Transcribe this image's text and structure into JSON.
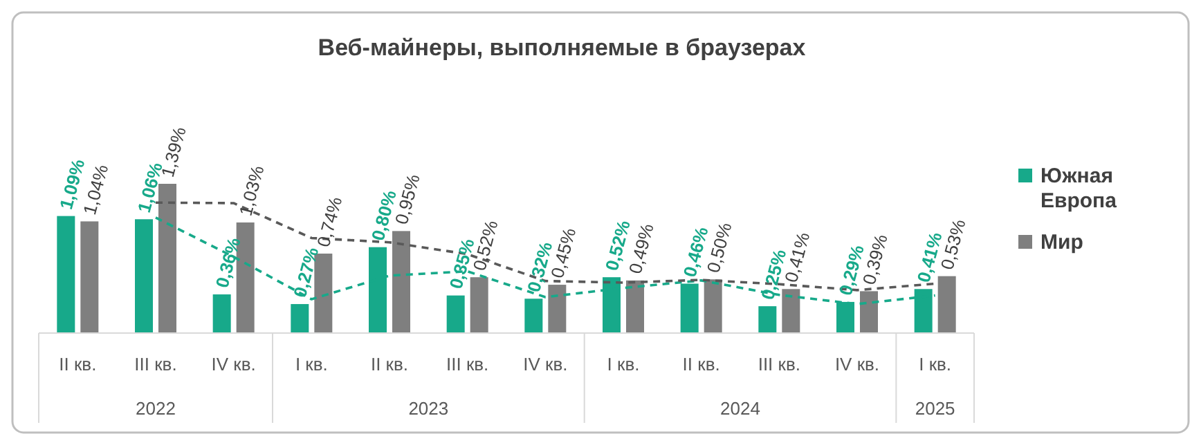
{
  "chart_data": {
    "type": "bar",
    "title": "Веб-майнеры, выполняемые в браузерах",
    "categories": [
      "II кв.",
      "III кв.",
      "IV кв.",
      "I кв.",
      "II кв.",
      "III кв.",
      "IV кв.",
      "I кв.",
      "II кв.",
      "III кв.",
      "IV кв.",
      "I кв."
    ],
    "series": [
      {
        "name": "Южная Европа",
        "color": "#17a98a",
        "values": [
          1.09,
          1.06,
          0.36,
          0.27,
          0.8,
          0.35,
          0.32,
          0.52,
          0.46,
          0.25,
          0.29,
          0.41
        ],
        "value_labels": [
          "1,09%",
          "1,06%",
          "0,36%",
          "0,27%",
          "0,80%",
          "0,35%",
          "0,32%",
          "0,52%",
          "0,46%",
          "0,25%",
          "0,29%",
          "0,41%"
        ]
      },
      {
        "name": "Мир",
        "color": "#7f7f7f",
        "values": [
          1.04,
          1.39,
          1.03,
          0.74,
          0.95,
          0.52,
          0.45,
          0.49,
          0.5,
          0.41,
          0.39,
          0.53
        ],
        "value_labels": [
          "1,04%",
          "1,39%",
          "1,03%",
          "0,74%",
          "0,95%",
          "0,52%",
          "0,45%",
          "0,49%",
          "0,50%",
          "0,41%",
          "0,39%",
          "0,53%"
        ]
      },
      {
        "type": "line",
        "color": "#17a98a",
        "line_style": "dashed",
        "values": [
          null,
          1.075,
          0.71,
          0.315,
          0.535,
          0.575,
          0.335,
          0.42,
          0.49,
          0.355,
          0.27,
          0.35
        ]
      },
      {
        "type": "line",
        "color": "#595959",
        "line_style": "dashed",
        "values": [
          null,
          1.215,
          1.21,
          0.885,
          0.845,
          0.735,
          0.485,
          0.47,
          0.495,
          0.455,
          0.4,
          0.46
        ]
      }
    ],
    "annotations": [
      "2022",
      "2023",
      "2024",
      "2025"
    ],
    "legend": "right"
  }
}
